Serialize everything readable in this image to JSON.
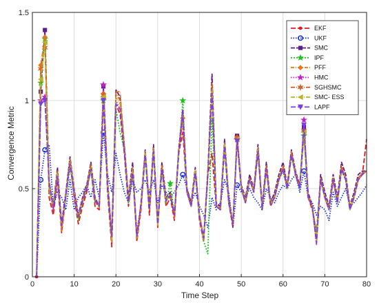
{
  "chart_data": {
    "type": "line",
    "title": "",
    "xlabel": "Time Step",
    "ylabel": "Convergence Metric",
    "xlim": [
      0,
      80
    ],
    "ylim": [
      0,
      1.5
    ],
    "xticks": [
      0,
      10,
      20,
      30,
      40,
      50,
      60,
      70,
      80
    ],
    "yticks": [
      0,
      0.5,
      1,
      1.5
    ],
    "xtick_labels": [
      "0",
      "10",
      "20",
      "30",
      "40",
      "50",
      "60",
      "70",
      "80"
    ],
    "ytick_labels": [
      "0",
      "0.5",
      "1",
      "1.5"
    ],
    "grid": true,
    "legend_position": "top-right",
    "x": [
      1,
      2,
      3,
      4,
      5,
      6,
      7,
      8,
      9,
      10,
      11,
      12,
      13,
      14,
      15,
      16,
      17,
      18,
      19,
      20,
      21,
      22,
      23,
      24,
      25,
      26,
      27,
      28,
      29,
      30,
      31,
      32,
      33,
      34,
      35,
      36,
      37,
      38,
      39,
      40,
      41,
      42,
      43,
      44,
      45,
      46,
      47,
      48,
      49,
      50,
      51,
      52,
      53,
      54,
      55,
      56,
      57,
      58,
      59,
      60,
      61,
      62,
      63,
      64,
      65,
      66,
      67,
      68,
      69,
      70,
      71,
      72,
      73,
      74,
      75,
      76,
      77,
      78,
      79,
      80
    ],
    "series": [
      {
        "name": "EKF",
        "color": "#e8151b",
        "dash": "7,3",
        "marker": "dot",
        "values": [
          0,
          1.15,
          1.38,
          0.45,
          0.35,
          0.55,
          0.25,
          0.45,
          0.66,
          0.45,
          0.3,
          0.4,
          0.48,
          0.62,
          0.4,
          0.38,
          1.02,
          0.48,
          0.17,
          0.98,
          0.92,
          0.7,
          0.4,
          0.6,
          0.2,
          0.38,
          0.7,
          0.35,
          0.72,
          0.28,
          0.62,
          0.4,
          0.45,
          0.32,
          0.7,
          0.82,
          0.48,
          0.4,
          0.6,
          0.32,
          0.2,
          0.58,
          0.7,
          0.4,
          0.38,
          0.75,
          0.42,
          0.28,
          0.8,
          0.5,
          0.42,
          0.55,
          0.48,
          0.72,
          0.38,
          0.62,
          0.4,
          0.45,
          0.55,
          0.62,
          0.5,
          0.7,
          0.58,
          0.5,
          0.82,
          0.45,
          0.38,
          0.25,
          0.55,
          0.45,
          0.38,
          0.55,
          0.42,
          0.62,
          0.55,
          0.38,
          0.45,
          0.55,
          0.58,
          0.78
        ]
      },
      {
        "name": "UKF",
        "color": "#1530d6",
        "dash": "1.5,2",
        "marker": "circle",
        "values": [
          0,
          0.55,
          0.72,
          0.75,
          0.4,
          0.48,
          0.45,
          0.38,
          0.55,
          0.38,
          0.45,
          0.48,
          0.52,
          0.45,
          0.55,
          0.45,
          0.82,
          0.58,
          0.48,
          0.7,
          0.58,
          0.48,
          0.42,
          0.55,
          0.48,
          0.5,
          0.55,
          0.48,
          0.55,
          0.42,
          0.52,
          0.48,
          0.45,
          0.48,
          0.52,
          0.58,
          0.5,
          0.42,
          0.48,
          0.4,
          0.35,
          0.28,
          0.45,
          0.38,
          0.42,
          0.55,
          0.48,
          0.28,
          0.52,
          0.48,
          0.45,
          0.5,
          0.45,
          0.42,
          0.38,
          0.5,
          0.45,
          0.42,
          0.48,
          0.52,
          0.5,
          0.55,
          0.58,
          0.48,
          0.6,
          0.45,
          0.42,
          0.35,
          0.4,
          0.38,
          0.32,
          0.48,
          0.4,
          0.45,
          0.5,
          0.4,
          0.42,
          0.45,
          0.48,
          0.52
        ]
      },
      {
        "name": "SMC",
        "color": "#5c1e8a",
        "dash": "6,2",
        "marker": "square",
        "values": [
          0,
          1.05,
          1.4,
          0.52,
          0.4,
          0.62,
          0.3,
          0.48,
          0.68,
          0.5,
          0.35,
          0.45,
          0.52,
          0.65,
          0.45,
          0.4,
          1.08,
          0.55,
          0.22,
          1.06,
          1.02,
          0.75,
          0.45,
          0.65,
          0.22,
          0.42,
          0.72,
          0.4,
          0.75,
          0.3,
          0.65,
          0.45,
          0.48,
          0.35,
          0.72,
          0.95,
          0.5,
          0.42,
          0.62,
          0.35,
          0.22,
          0.6,
          1.15,
          0.42,
          0.4,
          0.78,
          0.45,
          0.3,
          0.8,
          0.52,
          0.45,
          0.58,
          0.5,
          0.75,
          0.4,
          0.65,
          0.42,
          0.48,
          0.58,
          0.65,
          0.52,
          0.72,
          0.6,
          0.52,
          0.85,
          0.48,
          0.4,
          0.22,
          0.58,
          0.48,
          0.4,
          0.58,
          0.45,
          0.65,
          0.58,
          0.4,
          0.48,
          0.58,
          0.6,
          0.6
        ]
      },
      {
        "name": "IPF",
        "color": "#1ec21e",
        "dash": "2,2",
        "marker": "star",
        "values": [
          0,
          1.1,
          1.35,
          0.48,
          0.42,
          0.58,
          0.28,
          0.45,
          0.62,
          0.48,
          0.32,
          0.42,
          0.5,
          0.6,
          0.42,
          0.4,
          1.0,
          0.5,
          0.2,
          0.95,
          0.82,
          0.72,
          0.42,
          0.58,
          0.25,
          0.4,
          0.68,
          0.38,
          0.7,
          0.3,
          0.6,
          0.42,
          0.53,
          0.35,
          0.68,
          1.0,
          0.48,
          0.4,
          0.58,
          0.35,
          0.2,
          0.13,
          0.9,
          0.4,
          0.38,
          0.72,
          0.42,
          0.3,
          0.78,
          0.5,
          0.42,
          0.55,
          0.48,
          0.7,
          0.4,
          0.6,
          0.42,
          0.45,
          0.55,
          0.6,
          0.5,
          0.68,
          0.58,
          0.5,
          0.8,
          0.45,
          0.4,
          0.25,
          0.55,
          0.45,
          0.38,
          0.55,
          0.42,
          0.6,
          0.55,
          0.38,
          0.45,
          0.55,
          0.58,
          0.6
        ]
      },
      {
        "name": "PFF",
        "color": "#e07a1c",
        "dash": "5,2,1,2",
        "marker": "diamond",
        "values": [
          0,
          1.2,
          1.36,
          0.5,
          0.38,
          0.6,
          0.26,
          0.46,
          0.67,
          0.48,
          0.33,
          0.43,
          0.5,
          0.63,
          0.43,
          0.39,
          1.04,
          0.52,
          0.2,
          1.05,
          1.05,
          0.73,
          0.43,
          0.62,
          0.21,
          0.4,
          0.71,
          0.38,
          0.73,
          0.29,
          0.63,
          0.43,
          0.46,
          0.34,
          0.71,
          0.9,
          0.49,
          0.41,
          0.61,
          0.34,
          0.21,
          0.59,
          1.1,
          0.41,
          0.39,
          0.76,
          0.43,
          0.29,
          0.79,
          0.51,
          0.43,
          0.56,
          0.49,
          0.73,
          0.39,
          0.63,
          0.41,
          0.46,
          0.56,
          0.63,
          0.51,
          0.71,
          0.59,
          0.51,
          0.83,
          0.46,
          0.39,
          0.2,
          0.56,
          0.46,
          0.39,
          0.56,
          0.43,
          0.63,
          0.56,
          0.39,
          0.46,
          0.56,
          0.59,
          0.6
        ]
      },
      {
        "name": "HMC",
        "color": "#c41ecf",
        "dash": "1.5,2",
        "marker": "star",
        "values": [
          0,
          1.0,
          1.02,
          0.55,
          0.38,
          0.58,
          0.3,
          0.45,
          0.65,
          0.48,
          0.34,
          0.44,
          0.5,
          0.62,
          0.44,
          0.4,
          1.09,
          0.52,
          0.25,
          1.0,
          0.95,
          0.72,
          0.44,
          0.6,
          0.25,
          0.41,
          0.7,
          0.39,
          0.72,
          0.3,
          0.62,
          0.44,
          0.47,
          0.35,
          0.7,
          0.95,
          0.48,
          0.4,
          0.6,
          0.34,
          0.22,
          0.58,
          1.05,
          0.4,
          0.38,
          0.75,
          0.42,
          0.3,
          0.78,
          0.5,
          0.42,
          0.55,
          0.48,
          0.72,
          0.39,
          0.62,
          0.41,
          0.45,
          0.55,
          0.62,
          0.5,
          0.7,
          0.58,
          0.5,
          0.89,
          0.45,
          0.4,
          0.18,
          0.55,
          0.45,
          0.38,
          0.55,
          0.42,
          0.62,
          0.55,
          0.38,
          0.45,
          0.55,
          0.58,
          0.6
        ]
      },
      {
        "name": "SGHSMC",
        "color": "#d9642a",
        "dash": "6,2,1,2",
        "marker": "hexstar",
        "values": [
          0,
          1.18,
          1.3,
          0.52,
          0.4,
          0.6,
          0.27,
          0.47,
          0.66,
          0.49,
          0.34,
          0.44,
          0.51,
          0.64,
          0.44,
          0.4,
          1.03,
          0.53,
          0.21,
          1.04,
          1.0,
          0.74,
          0.44,
          0.61,
          0.22,
          0.41,
          0.71,
          0.39,
          0.73,
          0.3,
          0.62,
          0.44,
          0.47,
          0.35,
          0.71,
          0.88,
          0.49,
          0.41,
          0.6,
          0.35,
          0.22,
          0.59,
          1.08,
          0.41,
          0.39,
          0.76,
          0.44,
          0.3,
          0.79,
          0.51,
          0.44,
          0.56,
          0.49,
          0.73,
          0.4,
          0.62,
          0.42,
          0.46,
          0.56,
          0.62,
          0.51,
          0.7,
          0.59,
          0.51,
          0.83,
          0.46,
          0.4,
          0.21,
          0.56,
          0.46,
          0.39,
          0.56,
          0.43,
          0.62,
          0.56,
          0.39,
          0.46,
          0.56,
          0.59,
          0.6
        ]
      },
      {
        "name": "SMC- ESS",
        "color": "#b8b428",
        "dash": "6,2,1,2",
        "marker": "triangle-left",
        "values": [
          0,
          1.12,
          1.33,
          0.5,
          0.41,
          0.59,
          0.28,
          0.46,
          0.65,
          0.48,
          0.34,
          0.43,
          0.5,
          0.62,
          0.43,
          0.4,
          1.02,
          0.52,
          0.21,
          1.02,
          0.98,
          0.72,
          0.43,
          0.6,
          0.22,
          0.4,
          0.7,
          0.38,
          0.72,
          0.3,
          0.61,
          0.43,
          0.46,
          0.35,
          0.7,
          0.92,
          0.48,
          0.4,
          0.6,
          0.34,
          0.21,
          0.58,
          1.06,
          0.4,
          0.38,
          0.75,
          0.43,
          0.3,
          0.78,
          0.5,
          0.43,
          0.55,
          0.48,
          0.72,
          0.39,
          0.61,
          0.41,
          0.45,
          0.55,
          0.61,
          0.5,
          0.69,
          0.58,
          0.5,
          0.82,
          0.45,
          0.39,
          0.21,
          0.55,
          0.45,
          0.38,
          0.55,
          0.42,
          0.61,
          0.55,
          0.38,
          0.45,
          0.55,
          0.58,
          0.6
        ]
      },
      {
        "name": "LAPF",
        "color": "#7a3fdc",
        "dash": "7,3",
        "marker": "triangle-down",
        "values": [
          0,
          0.98,
          1.0,
          0.54,
          0.39,
          0.57,
          0.29,
          0.46,
          0.64,
          0.47,
          0.34,
          0.43,
          0.5,
          0.61,
          0.43,
          0.4,
          1.0,
          0.51,
          0.23,
          0.98,
          0.95,
          0.71,
          0.43,
          0.59,
          0.23,
          0.4,
          0.69,
          0.38,
          0.71,
          0.3,
          0.61,
          0.43,
          0.46,
          0.35,
          0.69,
          0.93,
          0.48,
          0.4,
          0.59,
          0.34,
          0.22,
          0.57,
          1.04,
          0.4,
          0.38,
          0.74,
          0.42,
          0.3,
          0.77,
          0.5,
          0.42,
          0.55,
          0.48,
          0.71,
          0.39,
          0.61,
          0.41,
          0.45,
          0.55,
          0.61,
          0.5,
          0.69,
          0.58,
          0.5,
          0.86,
          0.45,
          0.4,
          0.19,
          0.55,
          0.45,
          0.38,
          0.55,
          0.42,
          0.61,
          0.55,
          0.38,
          0.45,
          0.55,
          0.58,
          0.6
        ]
      }
    ]
  }
}
